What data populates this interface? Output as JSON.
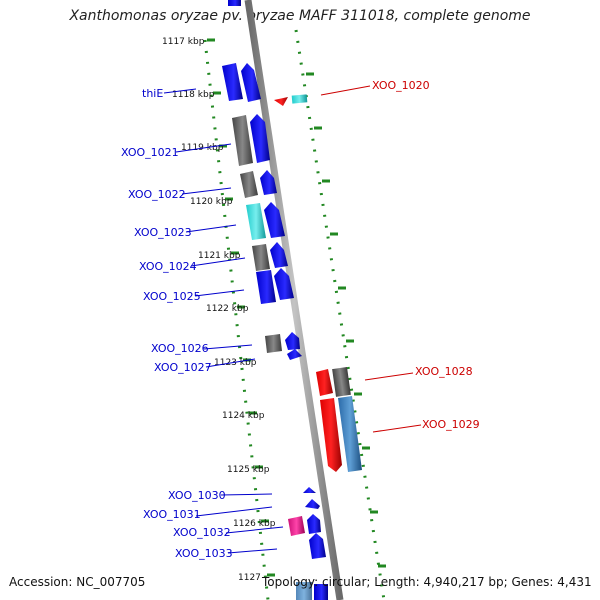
{
  "title": "Xanthomonas oryzae pv. oryzae MAFF 311018, complete genome",
  "footer": {
    "accession": "Accession: NC_007705",
    "summary": "Topology: circular; Length: 4,940,217 bp; Genes: 4,431"
  },
  "colors": {
    "forward_label": "#0000cc",
    "reverse_label": "#cc0000",
    "backbone": "#999999",
    "scale_dots": "#228822"
  },
  "scale_ticks": [
    {
      "label": "1117 kbp"
    },
    {
      "label": "1118 kbp"
    },
    {
      "label": "1119 kbp"
    },
    {
      "label": "1120 kbp"
    },
    {
      "label": "1121 kbp"
    },
    {
      "label": "1122 kbp"
    },
    {
      "label": "1123 kbp"
    },
    {
      "label": "1124 kbp"
    },
    {
      "label": "1125 kbp"
    },
    {
      "label": "1126 kbp"
    },
    {
      "label": "1127"
    }
  ],
  "gene_labels": [
    {
      "name": "thiE",
      "strand": "forward"
    },
    {
      "name": "XOO_1021",
      "strand": "forward"
    },
    {
      "name": "XOO_1022",
      "strand": "forward"
    },
    {
      "name": "XOO_1023",
      "strand": "forward"
    },
    {
      "name": "XOO_1024",
      "strand": "forward"
    },
    {
      "name": "XOO_1025",
      "strand": "forward"
    },
    {
      "name": "XOO_1026",
      "strand": "forward"
    },
    {
      "name": "XOO_1027",
      "strand": "forward"
    },
    {
      "name": "XOO_1030",
      "strand": "forward"
    },
    {
      "name": "XOO_1031",
      "strand": "forward"
    },
    {
      "name": "XOO_1032",
      "strand": "forward"
    },
    {
      "name": "XOO_1033",
      "strand": "forward"
    },
    {
      "name": "XOO_1020",
      "strand": "reverse"
    },
    {
      "name": "XOO_1028",
      "strand": "reverse"
    },
    {
      "name": "XOO_1029",
      "strand": "reverse"
    }
  ]
}
